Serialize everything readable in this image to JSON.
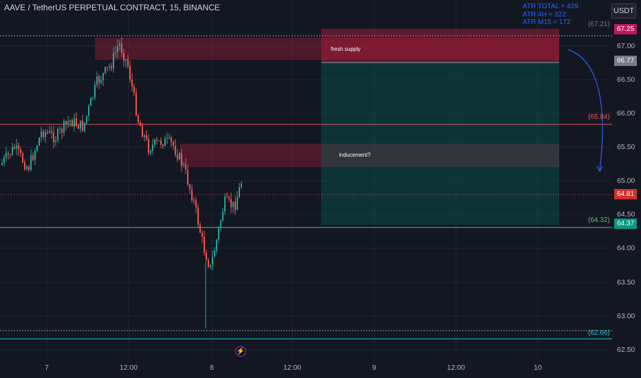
{
  "header": {
    "title": "AAVE / TetherUS PERPETUAL CONTRACT, 15, BINANCE",
    "currency_button": "USDT"
  },
  "atr_notes": [
    "ATR TOTAL = 429",
    "ATR 4H = 322",
    "ATR M15 = 172"
  ],
  "annotations": {
    "fresh_supply": "fresh supply",
    "inducement": "inducement?"
  },
  "price_tags": {
    "stop": "67.25",
    "entry": "66.77",
    "last": "64.81",
    "target": "64.37"
  },
  "bracket_labels": {
    "top": "(67.21)",
    "mid": "(65.84)",
    "green": "(64.32)",
    "bottom": "(62.66)"
  },
  "y_axis": {
    "ticks": [
      "67.00",
      "66.50",
      "66.00",
      "65.50",
      "65.00",
      "64.50",
      "64.00",
      "63.50",
      "63.00",
      "62.50"
    ]
  },
  "x_axis": {
    "ticks": [
      "7",
      "12:00",
      "8",
      "12:00",
      "9",
      "12:00",
      "10"
    ]
  },
  "colors": {
    "background": "#131722",
    "up": "#26a69a",
    "down": "#ef5350",
    "supply_zone": "#c2185b",
    "position_target": "#00695c",
    "blue_line": "#26c6da",
    "green_line": "#66bb6a",
    "red_line": "#ef5350",
    "accent": "#2962ff"
  },
  "icons": {
    "event_marker": "flash-icon",
    "arrow": "curved-arrow-down-icon"
  }
}
